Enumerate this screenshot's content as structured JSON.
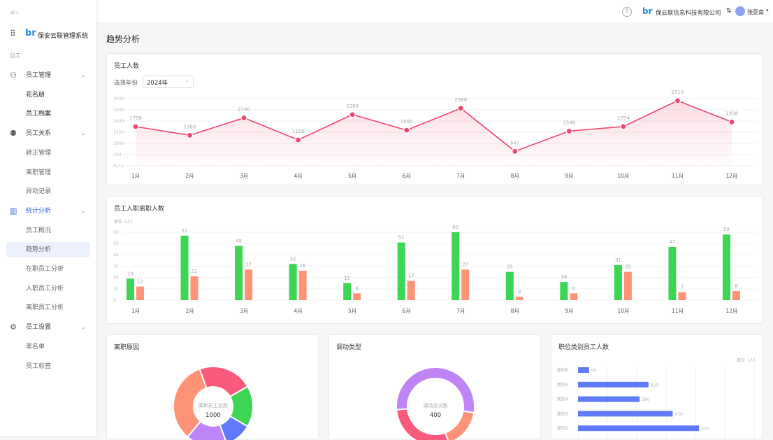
{
  "app": {
    "title": "保安云联管理系统",
    "section": "员工"
  },
  "sidebar": {
    "items": [
      {
        "label": "员工管理",
        "type": "group",
        "icon": "users-icon"
      },
      {
        "label": "花名册",
        "type": "sub"
      },
      {
        "label": "员工档案",
        "type": "sub"
      },
      {
        "label": "员工关系",
        "type": "group",
        "icon": "team-icon"
      },
      {
        "label": "转正管理",
        "type": "sub"
      },
      {
        "label": "离职管理",
        "type": "sub"
      },
      {
        "label": "异动记录",
        "type": "sub"
      },
      {
        "label": "统计分析",
        "type": "group",
        "icon": "chart-icon",
        "active": true
      },
      {
        "label": "员工概况",
        "type": "sub"
      },
      {
        "label": "趋势分析",
        "type": "sub",
        "active": true
      },
      {
        "label": "在职员工分析",
        "type": "sub"
      },
      {
        "label": "入职员工分析",
        "type": "sub"
      },
      {
        "label": "离职员工分析",
        "type": "sub"
      },
      {
        "label": "员工设置",
        "type": "group",
        "icon": "user-settings-icon"
      },
      {
        "label": "黑名单",
        "type": "sub"
      },
      {
        "label": "员工标签",
        "type": "sub"
      }
    ]
  },
  "header": {
    "company": "保云联信息科技有限公司",
    "switch_icon": "⇅",
    "user": "张亚南"
  },
  "page": {
    "title": "趋势分析"
  },
  "colors": {
    "accent": "#3b63e6",
    "line": "#f0466e",
    "in": "#3dd554",
    "out": "#ff9378",
    "hbar": "#5f7bfa"
  },
  "chart_data": [
    {
      "type": "line",
      "title": "员工人数",
      "filter_label": "选择年份",
      "filter_value": "2024年",
      "categories": [
        "1月",
        "2月",
        "3月",
        "4月",
        "5月",
        "6月",
        "7月",
        "8月",
        "9月",
        "10月",
        "11月",
        "12月"
      ],
      "values": [
        1750,
        1364,
        2140,
        1156,
        2289,
        1590,
        2568,
        647,
        1548,
        1754,
        2910,
        1958
      ],
      "yticks": [
        "0(人)",
        "500",
        "1000",
        "1500",
        "2000",
        "2500",
        "3000"
      ],
      "ylim": [
        0,
        3000
      ],
      "grid": true
    },
    {
      "type": "bar",
      "title": "员工入职离职人数",
      "unit": "单位（人）",
      "categories": [
        "1月",
        "2月",
        "3月",
        "4月",
        "5月",
        "6月",
        "7月",
        "8月",
        "9月",
        "10月",
        "11月",
        "12月"
      ],
      "series": [
        {
          "values": [
            19,
            57,
            48,
            32,
            15,
            51,
            60,
            25,
            16,
            31,
            47,
            58
          ]
        },
        {
          "values": [
            12,
            21,
            27,
            26,
            6,
            17,
            27,
            3,
            6,
            25,
            7,
            8
          ]
        }
      ],
      "yticks": [
        "0",
        "10",
        "20",
        "30",
        "40",
        "50",
        "60"
      ],
      "ylim": [
        0,
        60
      ],
      "grid": true
    },
    {
      "type": "pie",
      "title": "离职原因",
      "center_label": "离职员工总数",
      "center_value": "1000",
      "values": [
        222,
        167,
        111,
        167,
        333
      ],
      "colors": [
        "#fa5a7b",
        "#3dd554",
        "#5f7bfa",
        "#bf84f8",
        "#ff9378"
      ]
    },
    {
      "type": "pie",
      "title": "调动类型",
      "center_label": "调动总次数",
      "center_value": "400",
      "values": [
        216,
        67,
        117
      ],
      "colors": [
        "#bf84f8",
        "#ff9378",
        "#fa5a7b"
      ]
    },
    {
      "type": "bar",
      "orientation": "horizontal",
      "title": "职位类别员工人数",
      "unit": "单位（人）",
      "categories": [
        "类别6",
        "类别5",
        "类别4",
        "类别3",
        "类别2"
      ],
      "values": [
        50,
        320,
        280,
        430,
        550
      ],
      "xlim": [
        0,
        800
      ],
      "grid": true
    }
  ]
}
